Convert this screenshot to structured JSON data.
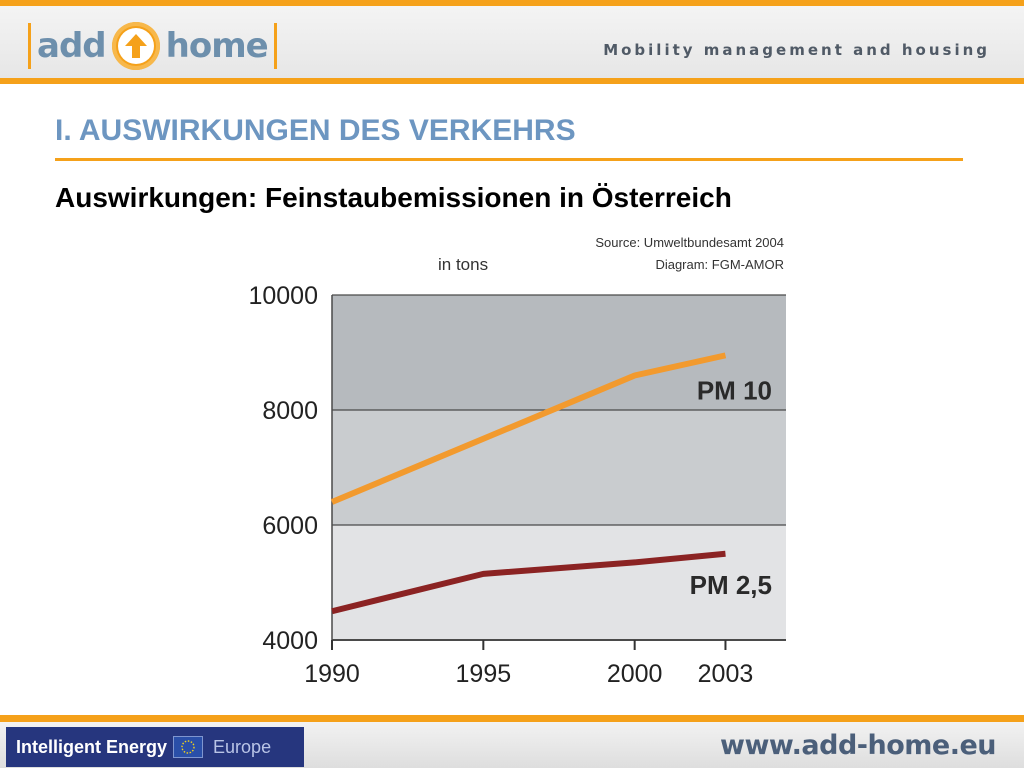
{
  "header": {
    "logo_left": "add",
    "logo_right": "home",
    "tagline": "Mobility management and housing"
  },
  "slide": {
    "title": "I. AUSWIRKUNGEN DES VERKEHRS",
    "subtitle": "Auswirkungen: Feinstaubemissionen in Österreich"
  },
  "chart_data": {
    "type": "line",
    "unit_label": "in tons",
    "source_line1": "Source: Umweltbundesamt 2004",
    "source_line2": "Diagram: FGM-AMOR",
    "x": [
      1990,
      1995,
      2000,
      2003
    ],
    "x_tick_labels": [
      "1990",
      "1995",
      "2000",
      "2003"
    ],
    "y_tick_labels": [
      "10000",
      "8000",
      "6000",
      "4000"
    ],
    "ylim": [
      4000,
      10000
    ],
    "xlim": [
      1990,
      2005
    ],
    "grid": true,
    "series": [
      {
        "name": "PM 10",
        "values": [
          6400,
          7500,
          8600,
          8950
        ],
        "color": "#f29a2e"
      },
      {
        "name": "PM 2,5",
        "values": [
          4500,
          5150,
          5350,
          5500
        ],
        "color": "#8b2323"
      }
    ],
    "colors": {
      "band_dark": "#b6babe",
      "band_mid": "#c9cccf",
      "band_light": "#e2e3e5",
      "grid": "#4a4a4a"
    }
  },
  "footer": {
    "program_part1": "Intelligent Energy",
    "program_part2": "Europe",
    "url": "www.add-home.eu"
  }
}
